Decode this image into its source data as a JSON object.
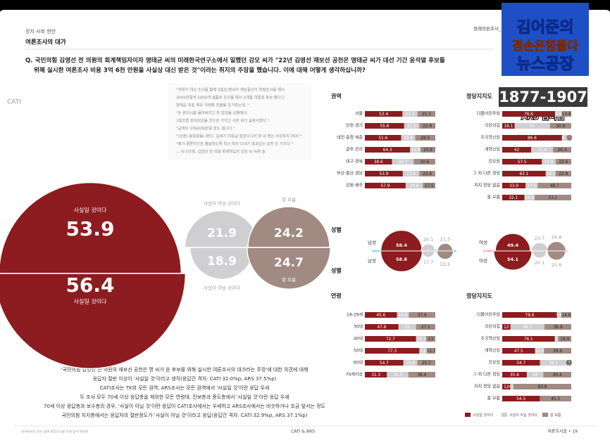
{
  "header": {
    "section": "정치·사회 현안",
    "title": "여론조사의 대가",
    "tag": "정례여론조사_"
  },
  "logo": {
    "line1": "김어준의",
    "line2": "겸손은힘들다",
    "line3": "뉴스공장",
    "phone": "1877-1907",
    "membership": "ARS 멤버십"
  },
  "question": [
    "Q. 국민의힘 김영선 전 의원의 회계책임자이자 명태균 씨의 미래한국연구소에서 일했던 강모 씨가 \"22년 김영선 재보선 공천은 명태균 씨가 대선 기간 윤석열 후보를",
    "위해 실시한 여론조사 비용 3억 6천 만원을 사실상 대신 받은 것\"이라는 취지의 주장을 했습니다. 이에 대해 어떻게 생각하십니까?"
  ],
  "quote": [
    "\"저희가 대선 조사를 할때 3월초(명씨가 재보궐선거 연말조사를 해서",
    "3000만원씩 5000개 샘플로 조사를 해서 4개월 대통령 후보 했다고",
    "명태균 대표 측과 거래해 진행을 포기하는데..\"",
    "\"돈 분이시를 물어봐라고 돈 받았을 상황에서,",
    "3월조합 분석이었을 만으로 가지고 서로 보다 출판사였다.\"",
    "\"금액이 3억6000만원 정도 됩니다.\"",
    "\"(단권) 동원원들니란다. 김세기 지원금 알았다니어 명 씨 했는 사모하지 아이?\"",
    "\"예가 결론적으로 행동하도록 최선 하자 다녀가 결과있는 공천 단 가지다.\"",
    "— 뉴스타파, 김영선 전 의원 회계책임자 강모 씨 녹취 중"
  ],
  "summary": [
    "'국민의힘 김영선 전 의원의 재보선 공천은 명 씨가 윤 후보를 위해 실시한 여론조사의 대가라는 주장'에 대한 의견에 대해",
    "응답자 절반 이상이 '사실일 것'이라고 생각(응답간 격차: CATI 32.0%p, ARS 37.5%p)",
    "CATI조사는 TK외 모든 권역, ARS조사는 모든 권역에서 '사실일 것'이란 응답 우세",
    "두 조사 모두 70세 이상 응답층을 제외한 모든 연령대, 진보층과 중도층에서 '사실일 것'이란 응답 우세",
    "70세 이상 응답층과 보수층의 경우, '사실이 아닐 것'이란 응답이 CATI조사에서는 우세하고 ARS조사에서는 비슷하거나 조금 앞서는 정도",
    "국민의힘 지지층에서는 응답자의 절반정도가 '사실이 아닐 것'이라고 응답(응답간 격차: CATI 32.9%p, ARS 37.1%p)"
  ],
  "footer": {
    "left": "한국리서치 조사 결과 여론조사꽃 자체 분석 데이터",
    "center": "CATI & ARS",
    "right": "여론조사꽃 • 19"
  },
  "chart_data": [
    {
      "type": "bubble",
      "categories": [
        "CATI",
        "ARS"
      ],
      "series": [
        {
          "name": "사실일 것이다",
          "color": "#8c1c1f",
          "values": [
            53.9,
            56.4
          ]
        },
        {
          "name": "사실이 아닐 것이다",
          "color": "#cfcfd2",
          "values": [
            21.9,
            18.9
          ]
        },
        {
          "name": "잘 모름",
          "color": "#a08a82",
          "values": [
            24.2,
            24.7
          ]
        }
      ]
    },
    {
      "type": "bar",
      "stacked": true,
      "title": "권역",
      "categories": [
        "서울",
        "인천·경기",
        "대전·충청·세종",
        "광주·전라",
        "대구·경북",
        "부산·울산·경남",
        "강원·제주"
      ],
      "series": [
        {
          "color": "#8c1c1f",
          "values": [
            53.4,
            55.8,
            51.6,
            64.3,
            38.6,
            53.9,
            57.9
          ]
        },
        {
          "color": "#cfcfd2",
          "values": [
            21.3,
            21.5,
            19.9,
            14.8,
            30.7,
            23.4,
            24.6
          ]
        },
        {
          "color": "#a08a82",
          "values": [
            25.3,
            22.8,
            28.5,
            20.9,
            30.6,
            22.6,
            17.5
          ]
        }
      ]
    },
    {
      "type": "bar",
      "stacked": true,
      "title": "정당지지도",
      "categories": [
        "더불어민주당",
        "국민의힘",
        "조국혁신당",
        "개혁신당",
        "진보당",
        "그 외 다른 정당",
        "지지 정당 없음",
        "잘 모름"
      ],
      "series": [
        {
          "color": "#8c1c1f",
          "values": [
            76.6,
            18.1,
            86.6,
            42.0,
            57.5,
            63.1,
            33.9,
            32.1
          ]
        },
        {
          "color": "#cfcfd2",
          "values": [
            9.6,
            51.0,
            8.1,
            31.6,
            19.9,
            14.1,
            17.5,
            14.8
          ]
        },
        {
          "color": "#a08a82",
          "values": [
            13.8,
            30.8,
            5.3,
            26.4,
            22.6,
            22.8,
            48.7,
            53.1
          ]
        }
      ]
    },
    {
      "type": "bubble-pairs",
      "title": "성별",
      "groups": [
        {
          "name": "남성",
          "cati": [
            58.4,
            20.1,
            21.5
          ],
          "ars": [
            58.8,
            17.7,
            23.5
          ]
        },
        {
          "name": "여성",
          "cati": [
            49.4,
            23.7,
            26.8
          ],
          "ars": [
            54.1,
            20.1,
            25.8
          ]
        }
      ]
    },
    {
      "type": "bar",
      "stacked": true,
      "title": "연령",
      "categories": [
        "18-29세",
        "30대",
        "40대",
        "50대",
        "60대",
        "70세이상"
      ],
      "series": [
        {
          "color": "#8c1c1f",
          "values": [
            45.6,
            47.8,
            72.7,
            77.3,
            54.7,
            31.3
          ]
        },
        {
          "color": "#cfcfd2",
          "values": [
            16.8,
            25.0,
            14.3,
            11.0,
            19.6,
            30.3
          ]
        },
        {
          "color": "#a08a82",
          "values": [
            37.6,
            27.1,
            13.0,
            11.7,
            25.7,
            38.4
          ]
        }
      ]
    },
    {
      "type": "bar",
      "stacked": true,
      "title": "정당지지도",
      "categories": [
        "더불어민주당",
        "국민의힘",
        "조국혁신당",
        "개혁신당",
        "진보당",
        "그 외 다른 정당",
        "지지 정당 없음",
        "잘 모름"
      ],
      "series": [
        {
          "color": "#8c1c1f",
          "values": [
            79.6,
            12.0,
            76.1,
            47.5,
            54.7,
            35.6,
            12.0,
            54.5
          ]
        },
        {
          "color": "#cfcfd2",
          "values": [
            5.8,
            49.1,
            5.0,
            12.9,
            39.1,
            24.0,
            4.2,
            0.0
          ]
        },
        {
          "color": "#a08a82",
          "values": [
            14.6,
            38.9,
            18.9,
            39.6,
            6.2,
            40.4,
            83.8,
            45.5
          ]
        }
      ]
    }
  ]
}
